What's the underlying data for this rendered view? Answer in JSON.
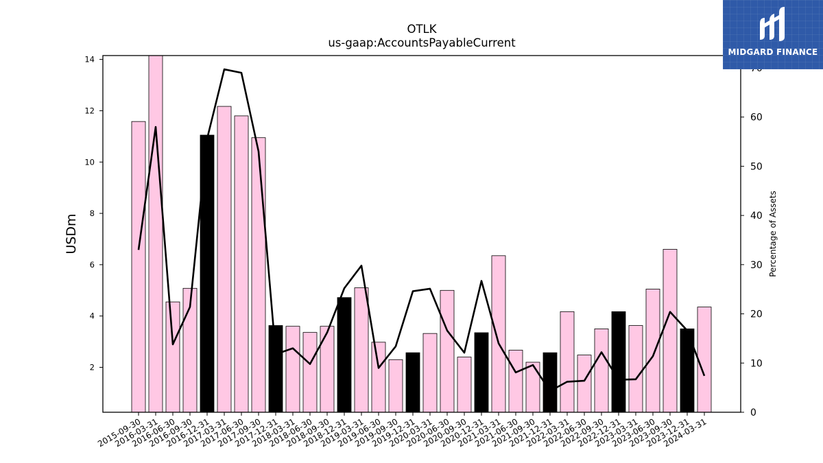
{
  "brand": {
    "name": "MIDGARD FINANCE",
    "icon": "midgard-logo-icon",
    "color": "#2f5aa8"
  },
  "chart_data": {
    "type": "bar",
    "title": "OTLK",
    "subtitle": "us-gaap:AccountsPayableCurrent",
    "ylabel": "USDm",
    "y2label": "Percentage of Assets",
    "ylim": [
      0.25,
      14.15
    ],
    "y2lim": [
      0,
      72.5
    ],
    "yticks": [
      2,
      4,
      6,
      8,
      10,
      12,
      14
    ],
    "y2ticks": [
      0,
      10,
      20,
      30,
      40,
      50,
      60,
      70
    ],
    "grid": false,
    "bar_color": "#ffc8e4",
    "highlight_color": "#000000",
    "line_color": "#000000",
    "categories": [
      "2015-09-30",
      "2016-03-31",
      "2016-06-30",
      "2016-09-30",
      "2016-12-31",
      "2017-03-31",
      "2017-06-30",
      "2017-09-30",
      "2017-12-31",
      "2018-03-31",
      "2018-06-30",
      "2018-09-30",
      "2018-12-31",
      "2019-03-31",
      "2019-06-30",
      "2019-09-30",
      "2019-12-31",
      "2020-03-31",
      "2020-06-30",
      "2020-09-30",
      "2020-12-31",
      "2021-03-31",
      "2021-06-30",
      "2021-09-30",
      "2021-12-31",
      "2022-03-31",
      "2022-06-30",
      "2022-09-30",
      "2022-12-31",
      "2023-03-31",
      "2023-06-30",
      "2023-09-30",
      "2023-12-31",
      "2024-03-31"
    ],
    "series": [
      {
        "type": "bar",
        "values": [
          11.58,
          14.2,
          4.55,
          5.08,
          11.05,
          12.17,
          11.8,
          10.95,
          3.63,
          3.6,
          3.36,
          3.6,
          4.72,
          5.1,
          2.98,
          2.3,
          2.57,
          3.32,
          5.0,
          2.4,
          3.35,
          6.35,
          2.67,
          2.2,
          2.57,
          4.17,
          2.48,
          3.5,
          4.17,
          3.63,
          5.05,
          6.6,
          3.5,
          4.35
        ]
      },
      {
        "type": "line",
        "axis": "right",
        "values": [
          33.0,
          58.0,
          13.8,
          21.4,
          55.6,
          69.7,
          69.0,
          53.0,
          11.8,
          13.0,
          9.8,
          16.2,
          25.2,
          29.8,
          9.0,
          13.4,
          24.6,
          25.1,
          16.6,
          12.1,
          26.7,
          14.0,
          8.1,
          9.6,
          4.3,
          6.2,
          6.4,
          12.2,
          6.6,
          6.7,
          11.4,
          20.4,
          16.6,
          7.4
        ]
      }
    ],
    "highlight_indices": [
      4,
      8,
      12,
      16,
      20,
      24,
      28,
      32
    ]
  }
}
